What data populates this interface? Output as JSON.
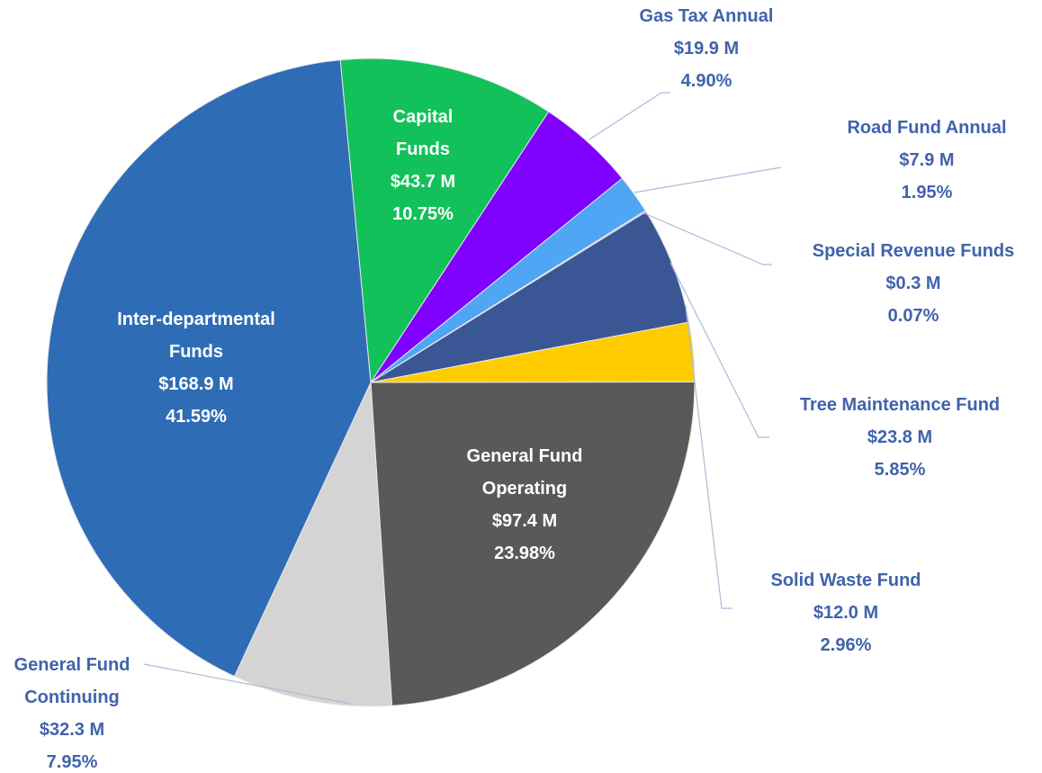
{
  "chart_data": {
    "type": "pie",
    "categories": [
      "Capital Funds",
      "Gas Tax Annual",
      "Road Fund Annual",
      "Special Revenue Funds",
      "Tree Maintenance Fund",
      "Solid Waste Fund",
      "General Fund Operating",
      "General Fund Continuing",
      "Inter-departmental Funds"
    ],
    "values": [
      10.75,
      4.9,
      1.95,
      0.07,
      5.85,
      2.96,
      23.98,
      7.95,
      41.59
    ],
    "value_labels": [
      "10.75%",
      "4.90%",
      "1.95%",
      "0.07%",
      "5.85%",
      "2.96%",
      "23.98%",
      "7.95%",
      "41.59%"
    ],
    "amount_labels": [
      "$43.7 M",
      "$19.9 M",
      "$7.9 M",
      "$0.3 M",
      "$23.8 M",
      "$12.0 M",
      "$97.4 M",
      "$32.3 M",
      "$168.9 M"
    ],
    "colors": [
      "#12c15a",
      "#7f00ff",
      "#4ea6f5",
      "#8fb4e3",
      "#3b5695",
      "#ffcc00",
      "#595959",
      "#d4d4d4",
      "#2e6db5"
    ]
  }
}
